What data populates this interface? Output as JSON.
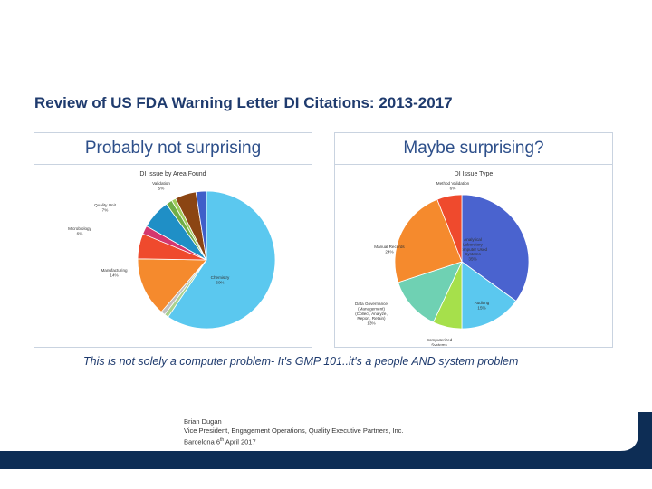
{
  "slide": {
    "title": "Review of US FDA Warning Letter DI Citations: 2013-2017",
    "left_heading": "Probably not surprising",
    "right_heading": "Maybe surprising?",
    "subtitle": "This is not solely a computer problem-  It's GMP 101..it's a people AND system problem",
    "footer": {
      "name": "Brian Dugan",
      "role": "Vice President, Engagement Operations, Quality Executive Partners, Inc.",
      "location_prefix": "Barcelona 6",
      "location_sup": "th",
      "location_suffix": " April 2017"
    }
  },
  "colors": {
    "title": "#1f3b6e",
    "band": "#0d2d55"
  },
  "chart_data": [
    {
      "type": "pie",
      "title": "DI Issue by Area Found",
      "slices": [
        {
          "label": "Chemistry",
          "pct_label": "60%",
          "value": 60,
          "color": "#5bc8ef"
        },
        {
          "label": "",
          "pct_label": "",
          "value": 1,
          "color": "#a9d18e"
        },
        {
          "label": "",
          "pct_label": "",
          "value": 1,
          "color": "#bfbfbf"
        },
        {
          "label": "Manufacturing",
          "pct_label": "14%",
          "value": 14,
          "color": "#f58a2d"
        },
        {
          "label": "Microbiology",
          "pct_label": "6%",
          "value": 6,
          "color": "#ef4a2d"
        },
        {
          "label": "",
          "pct_label": "",
          "value": 2,
          "color": "#d4376e"
        },
        {
          "label": "Quality Unit",
          "pct_label": "7%",
          "value": 7,
          "color": "#1f8fc6"
        },
        {
          "label": "",
          "pct_label": "",
          "value": 1.5,
          "color": "#70ad47"
        },
        {
          "label": "",
          "pct_label": "",
          "value": 1,
          "color": "#9fcc5a"
        },
        {
          "label": "Validation",
          "pct_label": "5%",
          "value": 5,
          "color": "#8b4513"
        },
        {
          "label": "",
          "pct_label": "",
          "value": 2.5,
          "color": "#3f5fc9"
        }
      ]
    },
    {
      "type": "pie",
      "title": "DI Issue Type",
      "slices": [
        {
          "label": "Analytical Laboratory Computer Used Systems",
          "pct_label": "35%",
          "value": 35,
          "color": "#4a63cf"
        },
        {
          "label": "Auditing",
          "pct_label": "15%",
          "value": 15,
          "color": "#5bc8ef"
        },
        {
          "label": "Computerized Systems",
          "pct_label": "7%",
          "value": 7,
          "color": "#a6e04b"
        },
        {
          "label": "Data Governance (Management) (Collect, Analyze, Report, Retain)",
          "pct_label": "13%",
          "value": 13,
          "color": "#6fd1b3"
        },
        {
          "label": "Manual Records",
          "pct_label": "24%",
          "value": 24,
          "color": "#f58a2d"
        },
        {
          "label": "Method Validation",
          "pct_label": "6%",
          "value": 6,
          "color": "#ef4a2d"
        }
      ]
    }
  ]
}
